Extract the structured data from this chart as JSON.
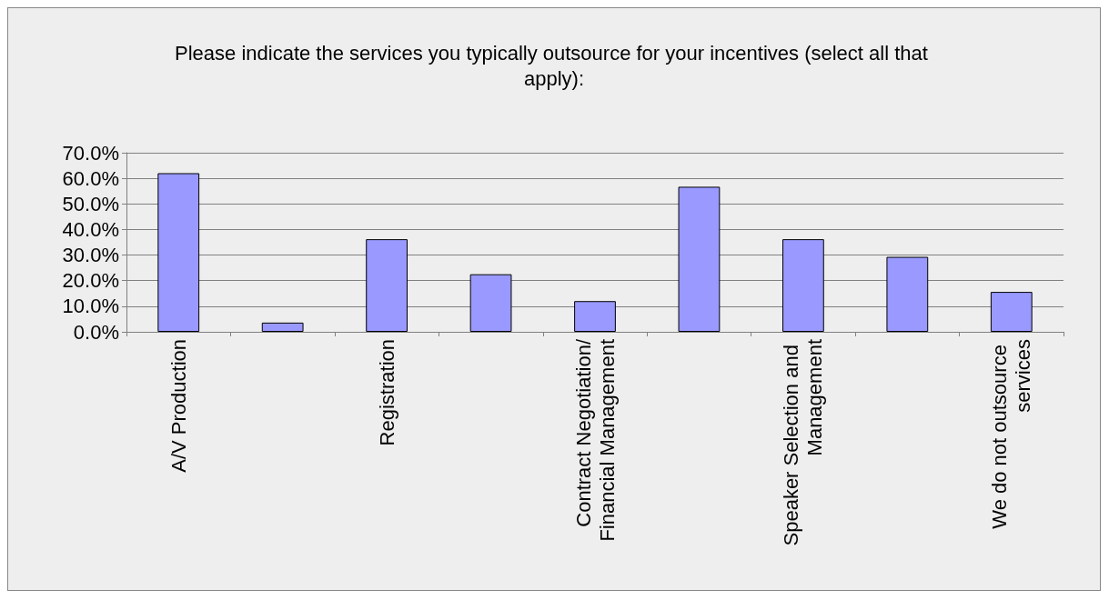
{
  "chart_data": {
    "type": "bar",
    "title": "Please indicate the services you typically outsource for your incentives (select all that apply):",
    "categories": [
      "A/V Production",
      null,
      "Registration",
      null,
      "Contract Negotiation/Financial Management",
      null,
      "Speaker Selection and Management",
      null,
      "We do not outsource services"
    ],
    "values": [
      62,
      3.6,
      36.2,
      22.5,
      12,
      56.7,
      36.2,
      29.3,
      15.6
    ],
    "color": "#9999ff",
    "ylim": [
      0,
      70
    ],
    "yticks": [
      {
        "value": 0,
        "label": "0.0%"
      },
      {
        "value": 10,
        "label": "10.0%"
      },
      {
        "value": 20,
        "label": "20.0%"
      },
      {
        "value": 30,
        "label": "30.0%"
      },
      {
        "value": 40,
        "label": "40.0%"
      },
      {
        "value": 50,
        "label": "50.0%"
      },
      {
        "value": 60,
        "label": "60.0%"
      },
      {
        "value": 70,
        "label": "70.0%"
      }
    ],
    "grid": "y"
  }
}
